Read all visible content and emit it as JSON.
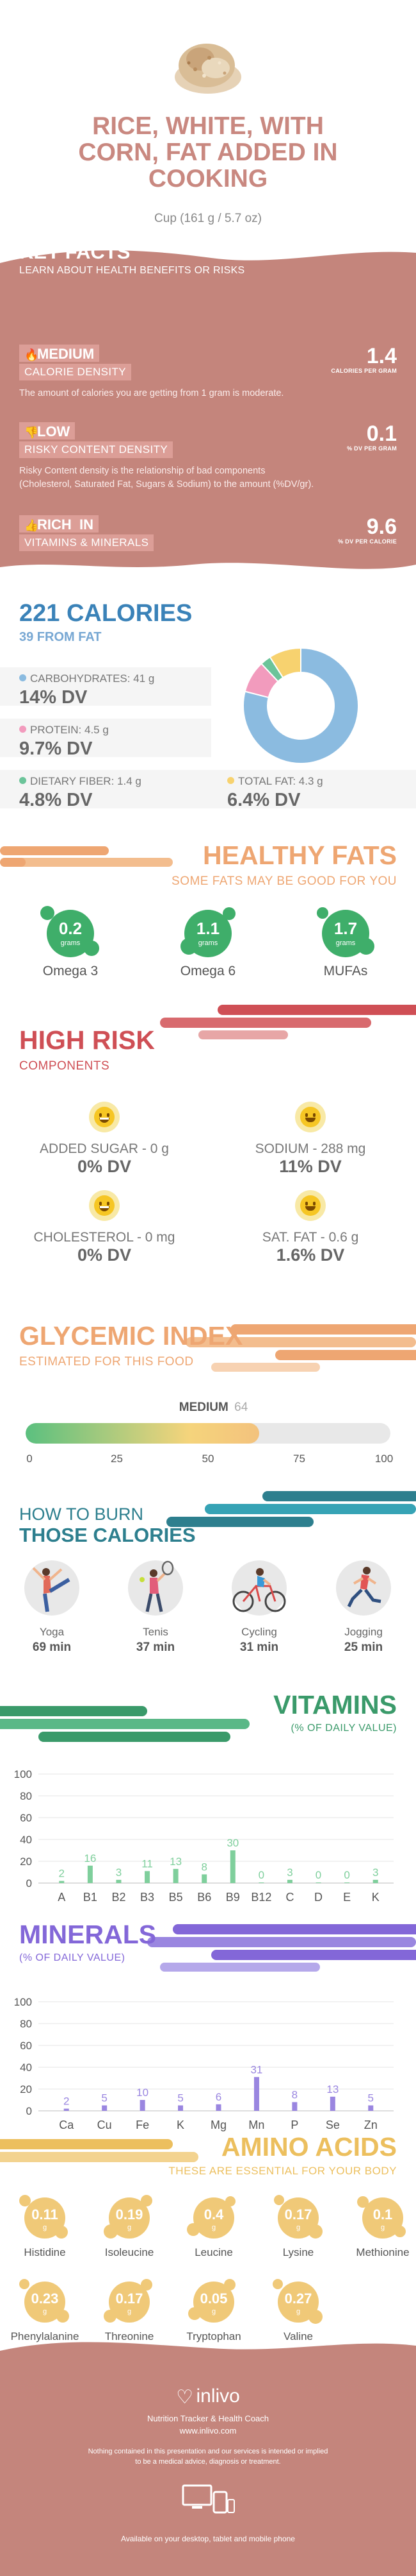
{
  "header": {
    "title_lines": [
      "RICE, WHITE, WITH",
      "CORN, FAT ADDED IN",
      "COOKING"
    ],
    "serving": "Cup (161 g / 5.7 oz)"
  },
  "key_facts": {
    "title": "KEY FACTS",
    "subtitle": "LEARN ABOUT HEALTH BENEFITS OR RISKS",
    "items": [
      {
        "icon": "flame-icon",
        "level": "MEDIUM",
        "label": "CALORIE DENSITY",
        "value": "1.4",
        "unit": "CALORIES PER GRAM",
        "desc": [
          "The amount of calories you are getting from 1 gram is moderate."
        ]
      },
      {
        "icon": "thumbs-down-icon",
        "level": "LOW",
        "label": "RISKY CONTENT DENSITY",
        "value": "0.1",
        "unit": "% DV PER GRAM",
        "desc": [
          "Risky Content density is the relationship of bad components",
          "(Cholesterol, Saturated Fat, Sugars & Sodium) to the amount (%DV/gr)."
        ]
      },
      {
        "icon": "thumbs-up-icon",
        "level": "RICH  IN",
        "label": "VITAMINS & MINERALS",
        "value": "9.6",
        "unit": "% DV PER CALORIE",
        "desc": []
      }
    ]
  },
  "calories": {
    "title": "221 CALORIES",
    "subtitle": "39 FROM FAT",
    "macros": [
      {
        "label": "CARBOHYDRATES: 41 g",
        "dv": "14% DV",
        "color": "#8bbbe0"
      },
      {
        "label": "PROTEIN: 4.5 g",
        "dv": "9.7% DV",
        "color": "#f29bbd"
      },
      {
        "label": "DIETARY FIBER: 1.4 g",
        "dv": "4.8% DV",
        "color": "#6cc49a"
      },
      {
        "label": "TOTAL FAT: 4.3 g",
        "dv": "6.4% DV",
        "color": "#f7d26f"
      }
    ],
    "donut_slices": [
      {
        "value": 0.79,
        "color": "#8bbbe0"
      },
      {
        "value": 0.09,
        "color": "#f29bbd"
      },
      {
        "value": 0.03,
        "color": "#6cc49a"
      },
      {
        "value": 0.09,
        "color": "#f7d26f"
      }
    ]
  },
  "healthy_fats": {
    "title": "HEALTHY FATS",
    "subtitle": "SOME FATS MAY BE GOOD FOR YOU",
    "items": [
      {
        "value": "0.2",
        "unit": "grams",
        "name": "Omega 3"
      },
      {
        "value": "1.1",
        "unit": "grams",
        "name": "Omega 6"
      },
      {
        "value": "1.7",
        "unit": "grams",
        "name": "MUFAs"
      }
    ]
  },
  "high_risk": {
    "title": "HIGH RISK",
    "subtitle": "COMPONENTS",
    "items": [
      {
        "label": "ADDED SUGAR - 0 g",
        "dv": "0% DV",
        "face": "grin-icon"
      },
      {
        "label": "SODIUM - 288 mg",
        "dv": "11% DV",
        "face": "smile-icon"
      },
      {
        "label": "CHOLESTEROL - 0 mg",
        "dv": "0% DV",
        "face": "grin-icon"
      },
      {
        "label": "SAT. FAT - 0.6 g",
        "dv": "1.6% DV",
        "face": "smile-icon"
      }
    ]
  },
  "glycemic": {
    "title": "GLYCEMIC INDEX",
    "subtitle": "ESTIMATED FOR THIS FOOD",
    "level": "MEDIUM",
    "value": "64",
    "value_num": 64,
    "ticks": [
      "0",
      "25",
      "50",
      "75",
      "100"
    ]
  },
  "burn": {
    "title_top": "HOW TO BURN",
    "title_bottom": "THOSE CALORIES",
    "items": [
      {
        "name": "Yoga",
        "minutes": "69 min",
        "icon": "yoga-icon"
      },
      {
        "name": "Tenis",
        "minutes": "37 min",
        "icon": "tennis-icon"
      },
      {
        "name": "Cycling",
        "minutes": "31 min",
        "icon": "cycling-icon"
      },
      {
        "name": "Jogging",
        "minutes": "25 min",
        "icon": "jogging-icon"
      }
    ]
  },
  "vitamins": {
    "title": "VITAMINS",
    "subtitle": "(% OF DAILY VALUE)",
    "chart_data": {
      "type": "bar",
      "categories": [
        "A",
        "B1",
        "B2",
        "B3",
        "B5",
        "B6",
        "B9",
        "B12",
        "C",
        "D",
        "E",
        "K"
      ],
      "values": [
        2,
        16,
        3,
        11,
        13,
        8,
        30,
        0,
        3,
        0,
        0,
        3
      ],
      "ylim": [
        0,
        100
      ],
      "yticks": [
        "100",
        "80",
        "60",
        "40",
        "20",
        "0"
      ],
      "color": "#7fcf9c"
    }
  },
  "minerals": {
    "title": "MINERALS",
    "subtitle": "(% OF DAILY VALUE)",
    "chart_data": {
      "type": "bar",
      "categories": [
        "Ca",
        "Cu",
        "Fe",
        "K",
        "Mg",
        "Mn",
        "P",
        "Se",
        "Zn"
      ],
      "values": [
        2,
        5,
        10,
        5,
        6,
        31,
        8,
        13,
        5
      ],
      "ylim": [
        0,
        100
      ],
      "yticks": [
        "100",
        "80",
        "60",
        "40",
        "20",
        "0"
      ],
      "color": "#9a86e0"
    }
  },
  "amino": {
    "title": "AMINO ACIDS",
    "subtitle": "THESE ARE ESSENTIAL FOR YOUR BODY",
    "items": [
      {
        "value": "0.11",
        "unit": "g",
        "name": "Histidine"
      },
      {
        "value": "0.19",
        "unit": "g",
        "name": "Isoleucine"
      },
      {
        "value": "0.4",
        "unit": "g",
        "name": "Leucine"
      },
      {
        "value": "0.17",
        "unit": "g",
        "name": "Lysine"
      },
      {
        "value": "0.1",
        "unit": "g",
        "name": "Methionine"
      },
      {
        "value": "0.23",
        "unit": "g",
        "name": "Phenylalanine"
      },
      {
        "value": "0.17",
        "unit": "g",
        "name": "Threonine"
      },
      {
        "value": "0.05",
        "unit": "g",
        "name": "Tryptophan"
      },
      {
        "value": "0.27",
        "unit": "g",
        "name": "Valine"
      }
    ]
  },
  "footer": {
    "brand": "inlivo",
    "tagline": "Nutrition Tracker & Health Coach",
    "url": "www.inlivo.com",
    "disclaimer_lines": [
      "Nothing contained in this presentation and our services is intended or implied",
      "to be a medical advice, diagnosis or treatment."
    ],
    "available": "Available on your desktop, tablet and mobile phone"
  },
  "colors": {
    "rose": "#c98880",
    "blue": "#3a82b8",
    "orange": "#eea672",
    "red": "#cf4f55",
    "teal": "#2d7f8e",
    "green": "#3fae6a",
    "purple": "#8367d8",
    "gold": "#ecbf5e"
  }
}
